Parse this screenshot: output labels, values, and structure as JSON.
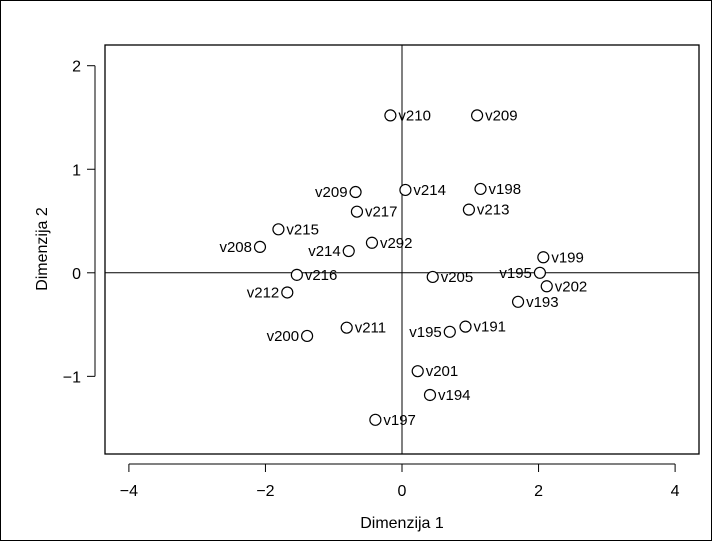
{
  "chart_data": {
    "type": "scatter",
    "title": "",
    "xlabel": "Dimenzija 1",
    "ylabel": "Dimenzija 2",
    "xlim": [
      -4.35,
      4.35
    ],
    "ylim": [
      -1.75,
      2.2
    ],
    "xticks": [
      -4,
      -2,
      0,
      2,
      4
    ],
    "xtick_labels": [
      "−4",
      "−2",
      "0",
      "2",
      "4"
    ],
    "yticks": [
      -1,
      0,
      1,
      2
    ],
    "ytick_labels": [
      "−1",
      "0",
      "1",
      "2"
    ],
    "reference_lines": {
      "x": 0,
      "y": 0
    },
    "grid": false,
    "legend": "none",
    "marker": "open-circle",
    "points": [
      {
        "label": "v210",
        "x": -0.17,
        "y": 1.52,
        "label_side": "right"
      },
      {
        "label": "v209",
        "x": 1.1,
        "y": 1.52,
        "label_side": "right"
      },
      {
        "label": "v209",
        "x": -0.68,
        "y": 0.78,
        "label_side": "left"
      },
      {
        "label": "v214",
        "x": 0.05,
        "y": 0.8,
        "label_side": "right"
      },
      {
        "label": "v198",
        "x": 1.15,
        "y": 0.81,
        "label_side": "right"
      },
      {
        "label": "v217",
        "x": -0.66,
        "y": 0.59,
        "label_side": "right"
      },
      {
        "label": "v213",
        "x": 0.98,
        "y": 0.61,
        "label_side": "right"
      },
      {
        "label": "v215",
        "x": -1.81,
        "y": 0.42,
        "label_side": "right"
      },
      {
        "label": "v292",
        "x": -0.44,
        "y": 0.29,
        "label_side": "right"
      },
      {
        "label": "v208",
        "x": -2.08,
        "y": 0.25,
        "label_side": "left"
      },
      {
        "label": "v214",
        "x": -0.78,
        "y": 0.21,
        "label_side": "left"
      },
      {
        "label": "v199",
        "x": 2.07,
        "y": 0.15,
        "label_side": "right"
      },
      {
        "label": "v195",
        "x": 2.02,
        "y": 0.0,
        "label_side": "left"
      },
      {
        "label": "v216",
        "x": -1.54,
        "y": -0.02,
        "label_side": "right"
      },
      {
        "label": "v205",
        "x": 0.45,
        "y": -0.04,
        "label_side": "right"
      },
      {
        "label": "v202",
        "x": 2.12,
        "y": -0.13,
        "label_side": "right"
      },
      {
        "label": "v212",
        "x": -1.68,
        "y": -0.19,
        "label_side": "left"
      },
      {
        "label": "v193",
        "x": 1.7,
        "y": -0.28,
        "label_side": "right"
      },
      {
        "label": "v211",
        "x": -0.81,
        "y": -0.53,
        "label_side": "right"
      },
      {
        "label": "v191",
        "x": 0.93,
        "y": -0.52,
        "label_side": "right"
      },
      {
        "label": "v195",
        "x": 0.7,
        "y": -0.57,
        "label_side": "left"
      },
      {
        "label": "v200",
        "x": -1.39,
        "y": -0.61,
        "label_side": "left"
      },
      {
        "label": "v201",
        "x": 0.23,
        "y": -0.95,
        "label_side": "right"
      },
      {
        "label": "v194",
        "x": 0.41,
        "y": -1.18,
        "label_side": "right"
      },
      {
        "label": "v197",
        "x": -0.39,
        "y": -1.42,
        "label_side": "right"
      }
    ]
  }
}
